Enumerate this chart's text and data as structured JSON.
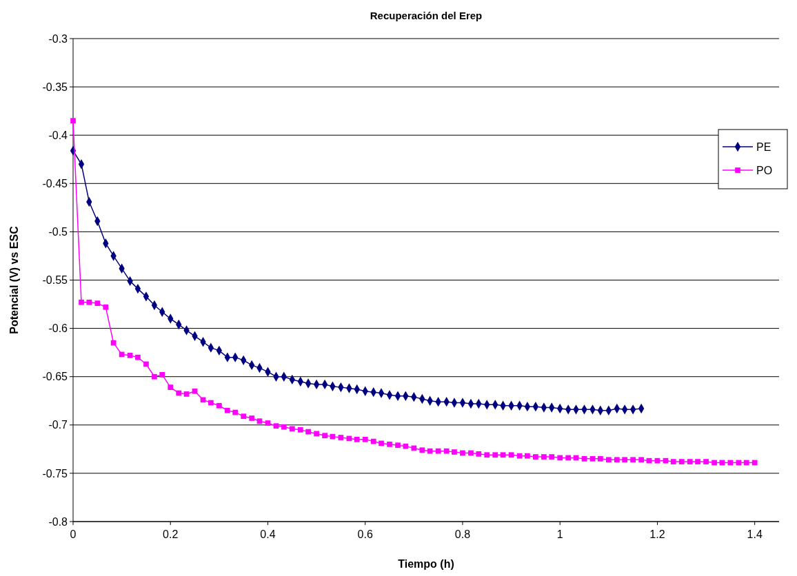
{
  "chart_data": {
    "type": "line",
    "title": "Recuperación del Erep",
    "xlabel": "Tiempo (h)",
    "ylabel": "Potencial (V) vs ESC",
    "x": [
      0,
      0.017,
      0.033,
      0.05,
      0.067,
      0.083,
      0.1,
      0.117,
      0.133,
      0.15,
      0.167,
      0.183,
      0.2,
      0.217,
      0.233,
      0.25,
      0.267,
      0.283,
      0.3,
      0.317,
      0.333,
      0.35,
      0.367,
      0.383,
      0.4,
      0.417,
      0.433,
      0.45,
      0.467,
      0.483,
      0.5,
      0.517,
      0.533,
      0.55,
      0.567,
      0.583,
      0.6,
      0.617,
      0.633,
      0.65,
      0.667,
      0.683,
      0.7,
      0.717,
      0.733,
      0.75,
      0.767,
      0.783,
      0.8,
      0.817,
      0.833,
      0.85,
      0.867,
      0.883,
      0.9,
      0.917,
      0.933,
      0.95,
      0.967,
      0.983,
      1,
      1.017,
      1.033,
      1.05,
      1.067,
      1.083,
      1.1,
      1.117,
      1.133,
      1.15,
      1.167,
      1.183,
      1.2,
      1.217,
      1.233,
      1.25,
      1.267,
      1.283,
      1.3,
      1.317,
      1.333,
      1.35,
      1.367,
      1.383,
      1.4
    ],
    "series": [
      {
        "name": "PE",
        "color": "#000080",
        "marker": "diamond",
        "x": [
          0,
          0.017,
          0.033,
          0.05,
          0.067,
          0.083,
          0.1,
          0.117,
          0.133,
          0.15,
          0.167,
          0.183,
          0.2,
          0.217,
          0.233,
          0.25,
          0.267,
          0.283,
          0.3,
          0.317,
          0.333,
          0.35,
          0.367,
          0.383,
          0.4,
          0.417,
          0.433,
          0.45,
          0.467,
          0.483,
          0.5,
          0.517,
          0.533,
          0.55,
          0.567,
          0.583,
          0.6,
          0.617,
          0.633,
          0.65,
          0.667,
          0.683,
          0.7,
          0.717,
          0.733,
          0.75,
          0.767,
          0.783,
          0.8,
          0.817,
          0.833,
          0.85,
          0.867,
          0.883,
          0.9,
          0.917,
          0.933,
          0.95,
          0.967,
          0.983,
          1,
          1.017,
          1.033,
          1.05,
          1.067,
          1.083,
          1.1,
          1.117,
          1.133,
          1.15,
          1.167
        ],
        "values": [
          -0.416,
          -0.43,
          -0.469,
          -0.489,
          -0.512,
          -0.525,
          -0.538,
          -0.551,
          -0.559,
          -0.567,
          -0.576,
          -0.583,
          -0.59,
          -0.596,
          -0.602,
          -0.608,
          -0.614,
          -0.62,
          -0.623,
          -0.63,
          -0.63,
          -0.633,
          -0.638,
          -0.641,
          -0.645,
          -0.65,
          -0.65,
          -0.653,
          -0.655,
          -0.657,
          -0.658,
          -0.658,
          -0.66,
          -0.661,
          -0.662,
          -0.663,
          -0.665,
          -0.666,
          -0.667,
          -0.669,
          -0.67,
          -0.67,
          -0.671,
          -0.673,
          -0.675,
          -0.676,
          -0.676,
          -0.677,
          -0.677,
          -0.678,
          -0.678,
          -0.679,
          -0.679,
          -0.68,
          -0.68,
          -0.68,
          -0.681,
          -0.681,
          -0.682,
          -0.682,
          -0.683,
          -0.684,
          -0.684,
          -0.684,
          -0.684,
          -0.685,
          -0.685,
          -0.683,
          -0.684,
          -0.684,
          -0.683
        ]
      },
      {
        "name": "PO",
        "color": "#ff00ff",
        "marker": "square",
        "values": [
          -0.385,
          -0.573,
          -0.573,
          -0.574,
          -0.578,
          -0.615,
          -0.627,
          -0.628,
          -0.63,
          -0.637,
          -0.65,
          -0.648,
          -0.661,
          -0.667,
          -0.668,
          -0.665,
          -0.674,
          -0.677,
          -0.68,
          -0.685,
          -0.687,
          -0.691,
          -0.693,
          -0.696,
          -0.698,
          -0.701,
          -0.702,
          -0.704,
          -0.705,
          -0.707,
          -0.709,
          -0.711,
          -0.712,
          -0.713,
          -0.714,
          -0.715,
          -0.715,
          -0.717,
          -0.719,
          -0.72,
          -0.721,
          -0.722,
          -0.724,
          -0.726,
          -0.727,
          -0.727,
          -0.727,
          -0.728,
          -0.729,
          -0.729,
          -0.73,
          -0.731,
          -0.731,
          -0.731,
          -0.731,
          -0.732,
          -0.732,
          -0.733,
          -0.733,
          -0.733,
          -0.734,
          -0.734,
          -0.734,
          -0.735,
          -0.735,
          -0.735,
          -0.736,
          -0.736,
          -0.736,
          -0.736,
          -0.736,
          -0.737,
          -0.737,
          -0.737,
          -0.738,
          -0.738,
          -0.738,
          -0.738,
          -0.738,
          -0.739,
          -0.739,
          -0.739,
          -0.739,
          -0.739,
          -0.739
        ]
      }
    ],
    "xlim": [
      0,
      1.45
    ],
    "xticks": [
      0,
      0.2,
      0.4,
      0.6,
      0.8,
      1,
      1.2,
      1.4
    ],
    "ylim": [
      -0.8,
      -0.3
    ],
    "yticks": [
      -0.8,
      -0.75,
      -0.7,
      -0.65,
      -0.6,
      -0.55,
      -0.5,
      -0.45,
      -0.4,
      -0.35,
      -0.3
    ],
    "grid": "y",
    "legend": "right",
    "line_style": "solid"
  }
}
